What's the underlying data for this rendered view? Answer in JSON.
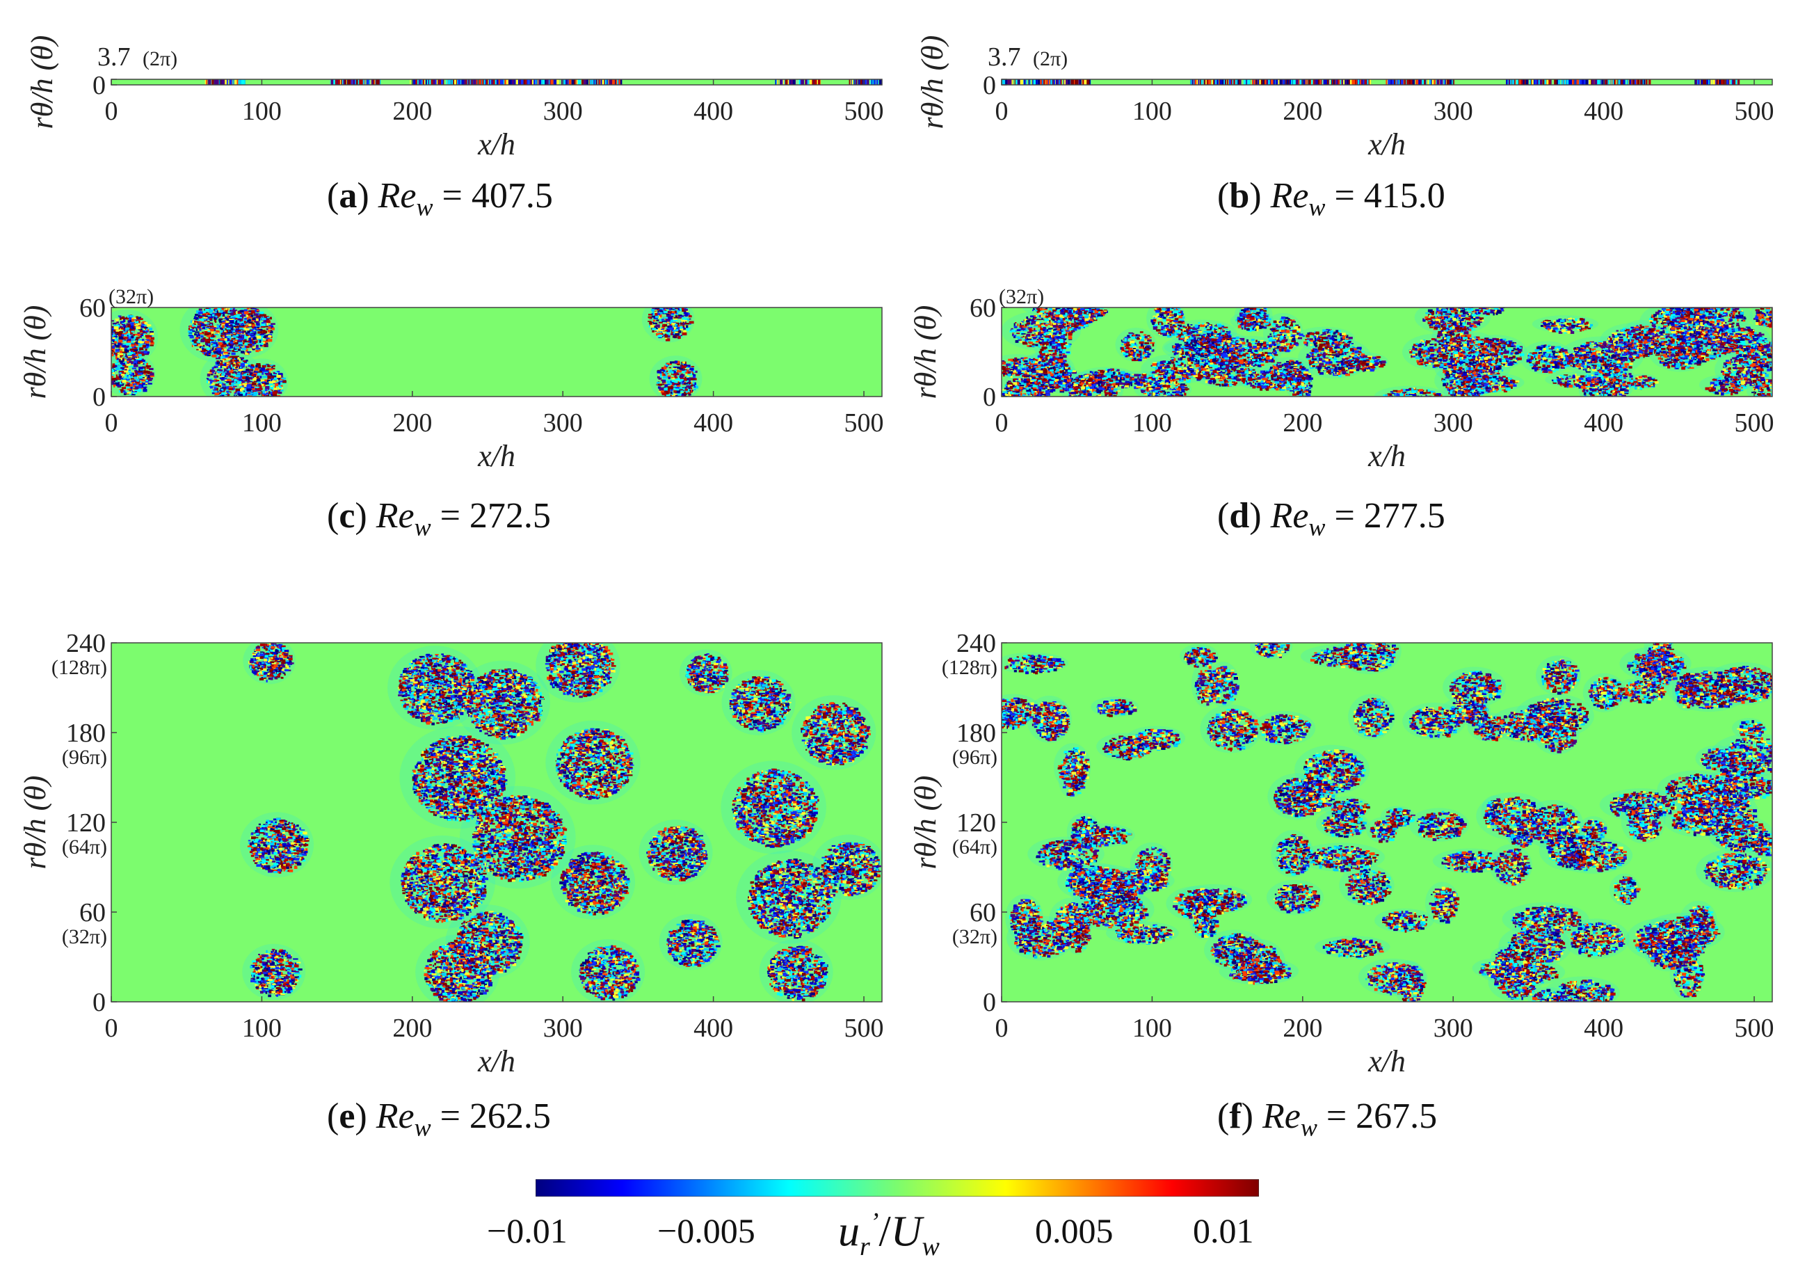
{
  "chart_data": [
    {
      "type": "heatmap",
      "panel": "a",
      "xlabel": "x/h",
      "ylabel": "rθ/h (θ)",
      "xlim": [
        0,
        512
      ],
      "ylim": [
        0,
        3.7
      ],
      "xticks": [
        "0",
        "100",
        "200",
        "300",
        "400",
        "500"
      ],
      "yticks": [
        {
          "value": 0,
          "label": "0",
          "angle": ""
        },
        {
          "value": 3.7,
          "label": "3.7",
          "angle": "(2π)"
        }
      ],
      "turbulent_x_ranges": [
        [
          62,
          88
        ],
        [
          145,
          178
        ],
        [
          198,
          338
        ],
        [
          440,
          470
        ],
        [
          490,
          512
        ]
      ],
      "caption_letter": "(a)",
      "caption_var": "Re",
      "caption_sub": "w",
      "caption_value": "= 407.5"
    },
    {
      "type": "heatmap",
      "panel": "b",
      "xlabel": "x/h",
      "ylabel": "rθ/h (θ)",
      "xlim": [
        0,
        512
      ],
      "ylim": [
        0,
        3.7
      ],
      "xticks": [
        "0",
        "100",
        "200",
        "300",
        "400",
        "500"
      ],
      "yticks": [
        {
          "value": 0,
          "label": "0",
          "angle": ""
        },
        {
          "value": 3.7,
          "label": "3.7",
          "angle": "(2π)"
        }
      ],
      "turbulent_x_ranges": [
        [
          0,
          60
        ],
        [
          125,
          245
        ],
        [
          255,
          300
        ],
        [
          335,
          430
        ],
        [
          460,
          490
        ]
      ],
      "caption_letter": "(b)",
      "caption_var": "Re",
      "caption_sub": "w",
      "caption_value": "= 415.0"
    },
    {
      "type": "heatmap",
      "panel": "c",
      "xlabel": "x/h",
      "ylabel": "rθ/h (θ)",
      "xlim": [
        0,
        512
      ],
      "ylim": [
        0,
        60
      ],
      "xticks": [
        "0",
        "100",
        "200",
        "300",
        "400",
        "500"
      ],
      "yticks": [
        {
          "value": 0,
          "label": "0",
          "angle": ""
        },
        {
          "value": 60,
          "label": "60",
          "angle": "(32π)"
        }
      ],
      "turbulent_spots": [
        [
          10,
          40,
          12
        ],
        [
          12,
          15,
          10
        ],
        [
          70,
          45,
          14
        ],
        [
          90,
          45,
          12
        ],
        [
          80,
          12,
          12
        ],
        [
          100,
          10,
          10
        ],
        [
          370,
          52,
          10
        ],
        [
          375,
          12,
          10
        ]
      ],
      "caption_letter": "(c)",
      "caption_var": "Re",
      "caption_sub": "w",
      "caption_value": "= 272.5"
    },
    {
      "type": "heatmap",
      "panel": "d",
      "xlabel": "x/h",
      "ylabel": "rθ/h (θ)",
      "xlim": [
        0,
        512
      ],
      "ylim": [
        0,
        60
      ],
      "xticks": [
        "0",
        "100",
        "200",
        "300",
        "400",
        "500"
      ],
      "yticks": [
        {
          "value": 0,
          "label": "0",
          "angle": ""
        },
        {
          "value": 60,
          "label": "60",
          "angle": "(32π)"
        }
      ],
      "turbulent_fraction": 0.62,
      "caption_letter": "(d)",
      "caption_var": "Re",
      "caption_sub": "w",
      "caption_value": "= 277.5"
    },
    {
      "type": "heatmap",
      "panel": "e",
      "xlabel": "x/h",
      "ylabel": "rθ/h (θ)",
      "xlim": [
        0,
        512
      ],
      "ylim": [
        0,
        240
      ],
      "xticks": [
        "0",
        "100",
        "200",
        "300",
        "400",
        "500"
      ],
      "yticks": [
        {
          "value": 0,
          "label": "0",
          "angle": ""
        },
        {
          "value": 60,
          "label": "60",
          "angle": "(32π)"
        },
        {
          "value": 120,
          "label": "120",
          "angle": "(64π)"
        },
        {
          "value": 180,
          "label": "180",
          "angle": "(96π)"
        },
        {
          "value": 240,
          "label": "240",
          "angle": "(128π)"
        }
      ],
      "turbulent_spots": [
        [
          105,
          228,
          10
        ],
        [
          110,
          105,
          14
        ],
        [
          108,
          20,
          12
        ],
        [
          215,
          210,
          18
        ],
        [
          230,
          150,
          22
        ],
        [
          220,
          80,
          20
        ],
        [
          230,
          20,
          16
        ],
        [
          260,
          200,
          18
        ],
        [
          270,
          110,
          22
        ],
        [
          250,
          40,
          16
        ],
        [
          310,
          225,
          16
        ],
        [
          320,
          160,
          18
        ],
        [
          320,
          80,
          16
        ],
        [
          330,
          20,
          14
        ],
        [
          375,
          100,
          14
        ],
        [
          385,
          40,
          12
        ],
        [
          395,
          220,
          10
        ],
        [
          430,
          200,
          14
        ],
        [
          440,
          130,
          20
        ],
        [
          450,
          70,
          20
        ],
        [
          455,
          20,
          14
        ],
        [
          480,
          180,
          16
        ],
        [
          490,
          90,
          14
        ]
      ],
      "caption_letter": "(e)",
      "caption_var": "Re",
      "caption_sub": "w",
      "caption_value": "= 262.5"
    },
    {
      "type": "heatmap",
      "panel": "f",
      "xlabel": "x/h",
      "ylabel": "rθ/h (θ)",
      "xlim": [
        0,
        512
      ],
      "ylim": [
        0,
        240
      ],
      "xticks": [
        "0",
        "100",
        "200",
        "300",
        "400",
        "500"
      ],
      "yticks": [
        {
          "value": 0,
          "label": "0",
          "angle": ""
        },
        {
          "value": 60,
          "label": "60",
          "angle": "(32π)"
        },
        {
          "value": 120,
          "label": "120",
          "angle": "(64π)"
        },
        {
          "value": 180,
          "label": "180",
          "angle": "(96π)"
        },
        {
          "value": 240,
          "label": "240",
          "angle": "(128π)"
        }
      ],
      "turbulent_fraction": 0.5,
      "caption_letter": "(f)",
      "caption_var": "Re",
      "caption_sub": "w",
      "caption_value": "= 267.5"
    }
  ],
  "colorbar": {
    "colormap": "jet",
    "ticks": [
      "−0.01",
      "−0.005",
      "0.005",
      "0.01"
    ],
    "title": "u",
    "title_sub": "r",
    "title_prime": "’",
    "title_rest": "/U",
    "title_rest_sub": "w",
    "range": [
      -0.01,
      0.01
    ]
  },
  "colors": {
    "laminar": "#7cfc6e",
    "axis": "#444444"
  }
}
